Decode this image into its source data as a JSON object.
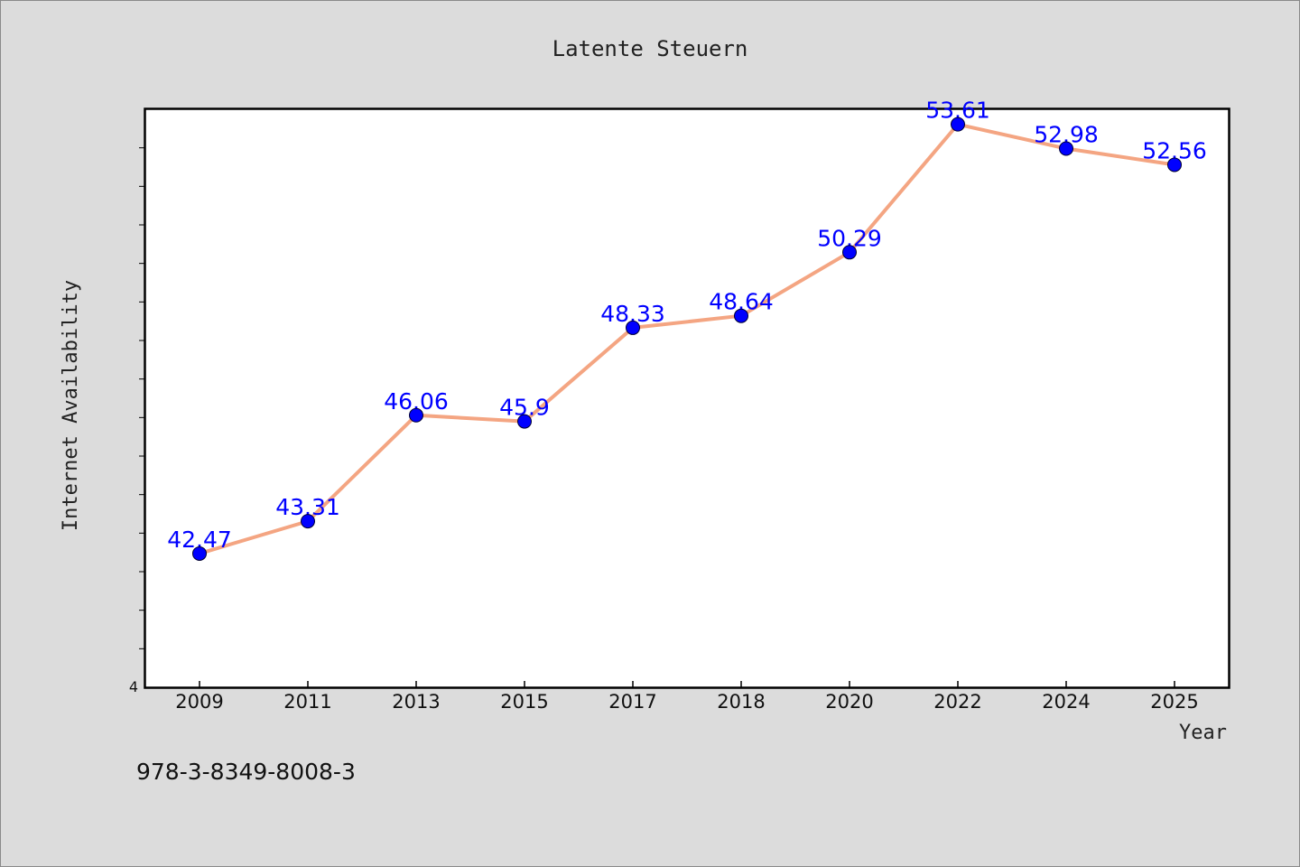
{
  "chart_data": {
    "type": "line",
    "title": "Latente Steuern",
    "xlabel": "Year",
    "ylabel": "Internet Availability",
    "categories": [
      "2009",
      "2011",
      "2013",
      "2015",
      "2017",
      "2018",
      "2020",
      "2022",
      "2024",
      "2025"
    ],
    "series": [
      {
        "values": [
          42.47,
          43.31,
          46.06,
          45.9,
          48.33,
          48.64,
          50.29,
          53.61,
          52.98,
          52.56
        ],
        "labels": [
          "42.47",
          "43.31",
          "46.06",
          "45.9",
          "48.33",
          "48.64",
          "50.29",
          "53.61",
          "52.98",
          "52.56"
        ]
      }
    ],
    "y_corner_label": "4",
    "ylim": [
      39.0,
      54.0
    ],
    "grid": false,
    "legend": "none",
    "colors": {
      "line": "#f4a582",
      "marker": "#0000ff",
      "label": "#0000ff"
    }
  },
  "footer": {
    "isbn": "978-3-8349-8008-3"
  }
}
